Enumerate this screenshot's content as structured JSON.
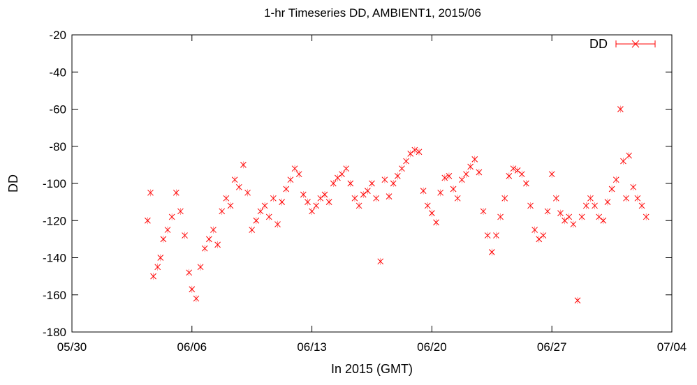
{
  "chart_data": {
    "type": "scatter",
    "title": "1-hr Timeseries DD, AMBIENT1, 2015/06",
    "xlabel": "In 2015 (GMT)",
    "ylabel": "DD",
    "x_unit": "date",
    "xlim": [
      "2015-05-30",
      "2015-07-04"
    ],
    "ylim": [
      -180,
      -20
    ],
    "x_ticks": [
      "05/30",
      "06/06",
      "06/13",
      "06/20",
      "06/27",
      "07/04"
    ],
    "y_ticks": [
      -20,
      -40,
      -60,
      -80,
      -100,
      -120,
      -140,
      -160,
      -180
    ],
    "grid": false,
    "legend_position": "top-right",
    "series_color": "#ff0000",
    "series": [
      {
        "name": "DD",
        "marker": "x",
        "error_bars": true,
        "x": [
          "2015-06-03 10:00",
          "2015-06-03 14:00",
          "2015-06-03 18:00",
          "2015-06-04 00:00",
          "2015-06-04 04:00",
          "2015-06-04 08:00",
          "2015-06-04 14:00",
          "2015-06-04 20:00",
          "2015-06-05 02:00",
          "2015-06-05 08:00",
          "2015-06-05 14:00",
          "2015-06-05 20:00",
          "2015-06-06 00:00",
          "2015-06-06 06:00",
          "2015-06-06 12:00",
          "2015-06-06 18:00",
          "2015-06-07 00:00",
          "2015-06-07 06:00",
          "2015-06-07 12:00",
          "2015-06-07 18:00",
          "2015-06-08 00:00",
          "2015-06-08 06:00",
          "2015-06-08 12:00",
          "2015-06-08 18:00",
          "2015-06-09 00:00",
          "2015-06-09 06:00",
          "2015-06-09 12:00",
          "2015-06-09 18:00",
          "2015-06-10 00:00",
          "2015-06-10 06:00",
          "2015-06-10 12:00",
          "2015-06-10 18:00",
          "2015-06-11 00:00",
          "2015-06-11 06:00",
          "2015-06-11 12:00",
          "2015-06-11 18:00",
          "2015-06-12 00:00",
          "2015-06-12 06:00",
          "2015-06-12 12:00",
          "2015-06-12 18:00",
          "2015-06-13 00:00",
          "2015-06-13 06:00",
          "2015-06-13 12:00",
          "2015-06-13 18:00",
          "2015-06-14 00:00",
          "2015-06-14 06:00",
          "2015-06-14 12:00",
          "2015-06-14 18:00",
          "2015-06-15 00:00",
          "2015-06-15 06:00",
          "2015-06-15 12:00",
          "2015-06-15 18:00",
          "2015-06-16 00:00",
          "2015-06-16 06:00",
          "2015-06-16 12:00",
          "2015-06-16 18:00",
          "2015-06-17 00:00",
          "2015-06-17 06:00",
          "2015-06-17 12:00",
          "2015-06-17 18:00",
          "2015-06-18 00:00",
          "2015-06-18 06:00",
          "2015-06-18 12:00",
          "2015-06-18 18:00",
          "2015-06-19 00:00",
          "2015-06-19 06:00",
          "2015-06-19 12:00",
          "2015-06-19 18:00",
          "2015-06-20 00:00",
          "2015-06-20 06:00",
          "2015-06-20 12:00",
          "2015-06-20 18:00",
          "2015-06-21 00:00",
          "2015-06-21 06:00",
          "2015-06-21 12:00",
          "2015-06-21 18:00",
          "2015-06-22 00:00",
          "2015-06-22 06:00",
          "2015-06-22 12:00",
          "2015-06-22 18:00",
          "2015-06-23 00:00",
          "2015-06-23 06:00",
          "2015-06-23 12:00",
          "2015-06-23 18:00",
          "2015-06-24 00:00",
          "2015-06-24 06:00",
          "2015-06-24 12:00",
          "2015-06-24 18:00",
          "2015-06-25 00:00",
          "2015-06-25 06:00",
          "2015-06-25 12:00",
          "2015-06-25 18:00",
          "2015-06-26 00:00",
          "2015-06-26 06:00",
          "2015-06-26 12:00",
          "2015-06-26 18:00",
          "2015-06-27 00:00",
          "2015-06-27 06:00",
          "2015-06-27 12:00",
          "2015-06-27 18:00",
          "2015-06-28 00:00",
          "2015-06-28 06:00",
          "2015-06-28 12:00",
          "2015-06-28 18:00",
          "2015-06-29 00:00",
          "2015-06-29 06:00",
          "2015-06-29 12:00",
          "2015-06-29 18:00",
          "2015-06-30 00:00",
          "2015-06-30 06:00",
          "2015-06-30 12:00",
          "2015-06-30 18:00",
          "2015-07-01 00:00",
          "2015-07-01 04:00",
          "2015-07-01 08:00",
          "2015-07-01 12:00",
          "2015-07-01 18:00",
          "2015-07-02 00:00",
          "2015-07-02 06:00",
          "2015-07-02 12:00"
        ],
        "y": [
          -120,
          -105,
          -150,
          -145,
          -140,
          -130,
          -125,
          -118,
          -105,
          -115,
          -128,
          -148,
          -157,
          -162,
          -145,
          -135,
          -130,
          -125,
          -133,
          -115,
          -108,
          -112,
          -98,
          -102,
          -90,
          -105,
          -125,
          -120,
          -115,
          -112,
          -118,
          -108,
          -122,
          -110,
          -103,
          -98,
          -92,
          -95,
          -106,
          -110,
          -115,
          -112,
          -108,
          -106,
          -110,
          -100,
          -97,
          -95,
          -92,
          -100,
          -108,
          -112,
          -106,
          -104,
          -100,
          -108,
          -142,
          -98,
          -107,
          -100,
          -96,
          -92,
          -88,
          -84,
          -82,
          -83,
          -104,
          -112,
          -116,
          -121,
          -105,
          -97,
          -96,
          -103,
          -108,
          -98,
          -95,
          -91,
          -87,
          -94,
          -115,
          -128,
          -137,
          -128,
          -118,
          -108,
          -96,
          -92,
          -93,
          -95,
          -100,
          -112,
          -125,
          -130,
          -128,
          -115,
          -95,
          -108,
          -116,
          -120,
          -118,
          -122,
          -163,
          -118,
          -112,
          -108,
          -112,
          -118,
          -120,
          -110,
          -103,
          -98,
          -60,
          -88,
          -108,
          -85,
          -102,
          -108,
          -112,
          -118
        ]
      }
    ]
  }
}
